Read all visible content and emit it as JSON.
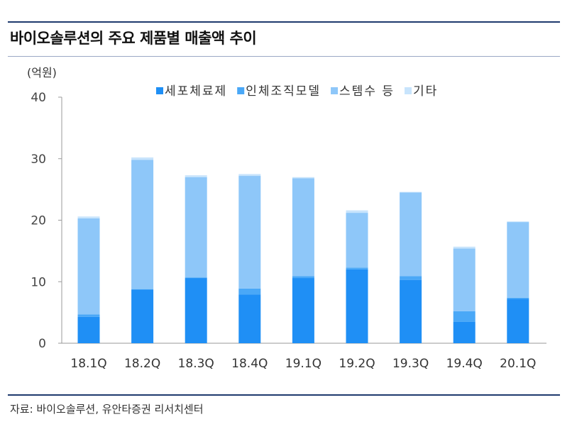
{
  "title": "바이오솔루션의 주요 제품별 매출액 추이",
  "source": "자료: 바이오솔루션, 유안타증권 리서치센터",
  "chart_data": {
    "type": "bar",
    "stacked": true,
    "unit_label": "(억원)",
    "categories": [
      "18.1Q",
      "18.2Q",
      "18.3Q",
      "18.4Q",
      "19.1Q",
      "19.2Q",
      "19.3Q",
      "19.4Q",
      "20.1Q"
    ],
    "ylim": [
      0,
      40
    ],
    "yticks": [
      0,
      10,
      20,
      30,
      40
    ],
    "grid": false,
    "legend_position": "top",
    "series": [
      {
        "name": "세포체료제",
        "color": "#1f8ff5",
        "values": [
          4.3,
          8.7,
          10.6,
          7.9,
          10.6,
          12.0,
          10.3,
          3.5,
          7.2
        ]
      },
      {
        "name": "인체조직모델",
        "color": "#4aa8f7",
        "values": [
          0.4,
          0.1,
          0.1,
          1.0,
          0.3,
          0.3,
          0.6,
          1.7,
          0.2
        ]
      },
      {
        "name": "스템수 등",
        "color": "#8ec7f9",
        "values": [
          15.6,
          21.0,
          16.3,
          18.3,
          15.9,
          8.9,
          13.6,
          10.2,
          12.3
        ]
      },
      {
        "name": "기타",
        "color": "#c8e4fc",
        "values": [
          0.3,
          0.4,
          0.3,
          0.3,
          0.2,
          0.4,
          0.1,
          0.3,
          0.1
        ]
      }
    ]
  }
}
